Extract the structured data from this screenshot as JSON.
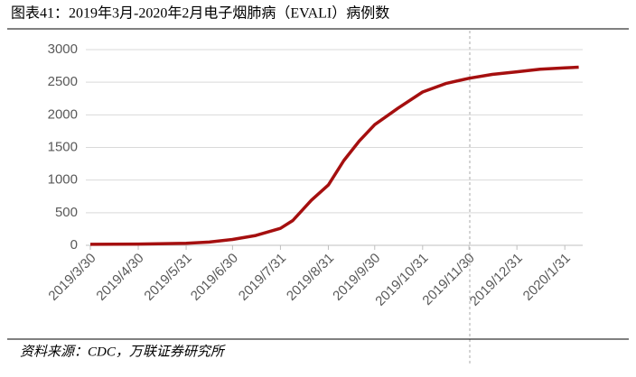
{
  "chart_data": {
    "type": "line",
    "title": "图表41：2019年3月-2020年2月电子烟肺病（EVALI）病例数",
    "source": "资料来源：CDC，万联证券研究所",
    "x": [
      "2019/3/30",
      "2019/4/30",
      "2019/5/31",
      "2019/6/15",
      "2019/6/30",
      "2019/7/15",
      "2019/7/31",
      "2019/8/8",
      "2019/8/20",
      "2019/8/31",
      "2019/9/10",
      "2019/9/20",
      "2019/9/30",
      "2019/10/15",
      "2019/10/31",
      "2019/11/15",
      "2019/11/30",
      "2019/12/15",
      "2019/12/31",
      "2020/1/15",
      "2020/1/31",
      "2020/2/9"
    ],
    "series": [
      {
        "color": "#a50f0f",
        "values": [
          15,
          20,
          30,
          50,
          90,
          150,
          260,
          380,
          690,
          925,
          1300,
          1600,
          1850,
          2100,
          2350,
          2480,
          2560,
          2620,
          2660,
          2700,
          2720,
          2730
        ]
      }
    ],
    "xlim": [
      "2019/3/30",
      "2020/2/18"
    ],
    "xticks": [
      "2019/3/30",
      "2019/4/30",
      "2019/5/31",
      "2019/6/30",
      "2019/7/31",
      "2019/8/31",
      "2019/9/30",
      "2019/10/31",
      "2019/11/30",
      "2019/12/31",
      "2020/1/31"
    ],
    "ylim": [
      0,
      3000
    ],
    "yticks": [
      0,
      500,
      1000,
      1500,
      2000,
      2500,
      3000
    ],
    "grid": true
  }
}
